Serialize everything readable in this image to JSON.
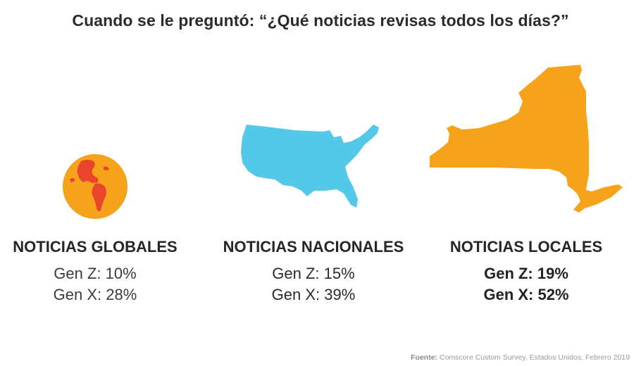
{
  "title": "Cuando se le preguntó: “¿Qué noticias revisas todos los días?”",
  "chart_data": {
    "type": "bar",
    "title": "Cuando se le preguntó: “¿Qué noticias revisas todos los días?”",
    "categories": [
      "NOTICIAS GLOBALES",
      "NOTICIAS NACIONALES",
      "NOTICIAS LOCALES"
    ],
    "unit": "%",
    "series": [
      {
        "name": "Gen Z",
        "values": [
          10,
          15,
          19
        ]
      },
      {
        "name": "Gen X",
        "values": [
          28,
          39,
          52
        ]
      }
    ],
    "icons": [
      "globe-icon",
      "usa-map-icon",
      "new-york-map-icon"
    ],
    "colors": {
      "globe": "#f7a21b",
      "globe_land": "#e8452c",
      "usa": "#54c8e8",
      "new_york": "#f7a21b"
    }
  },
  "panels": [
    {
      "label": "NOTICIAS GLOBALES",
      "gen_z": "Gen Z: 10%",
      "gen_x": "Gen X: 28%"
    },
    {
      "label": "NOTICIAS NACIONALES",
      "gen_z": "Gen Z: 15%",
      "gen_x": "Gen X: 39%"
    },
    {
      "label": "NOTICIAS LOCALES",
      "gen_z": "Gen Z: 19%",
      "gen_x": "Gen X: 52%"
    }
  ],
  "source": {
    "prefix": "Fuente:",
    "text": " Comscore Custom Survey, Estados Unidos, Febrero 2019"
  }
}
